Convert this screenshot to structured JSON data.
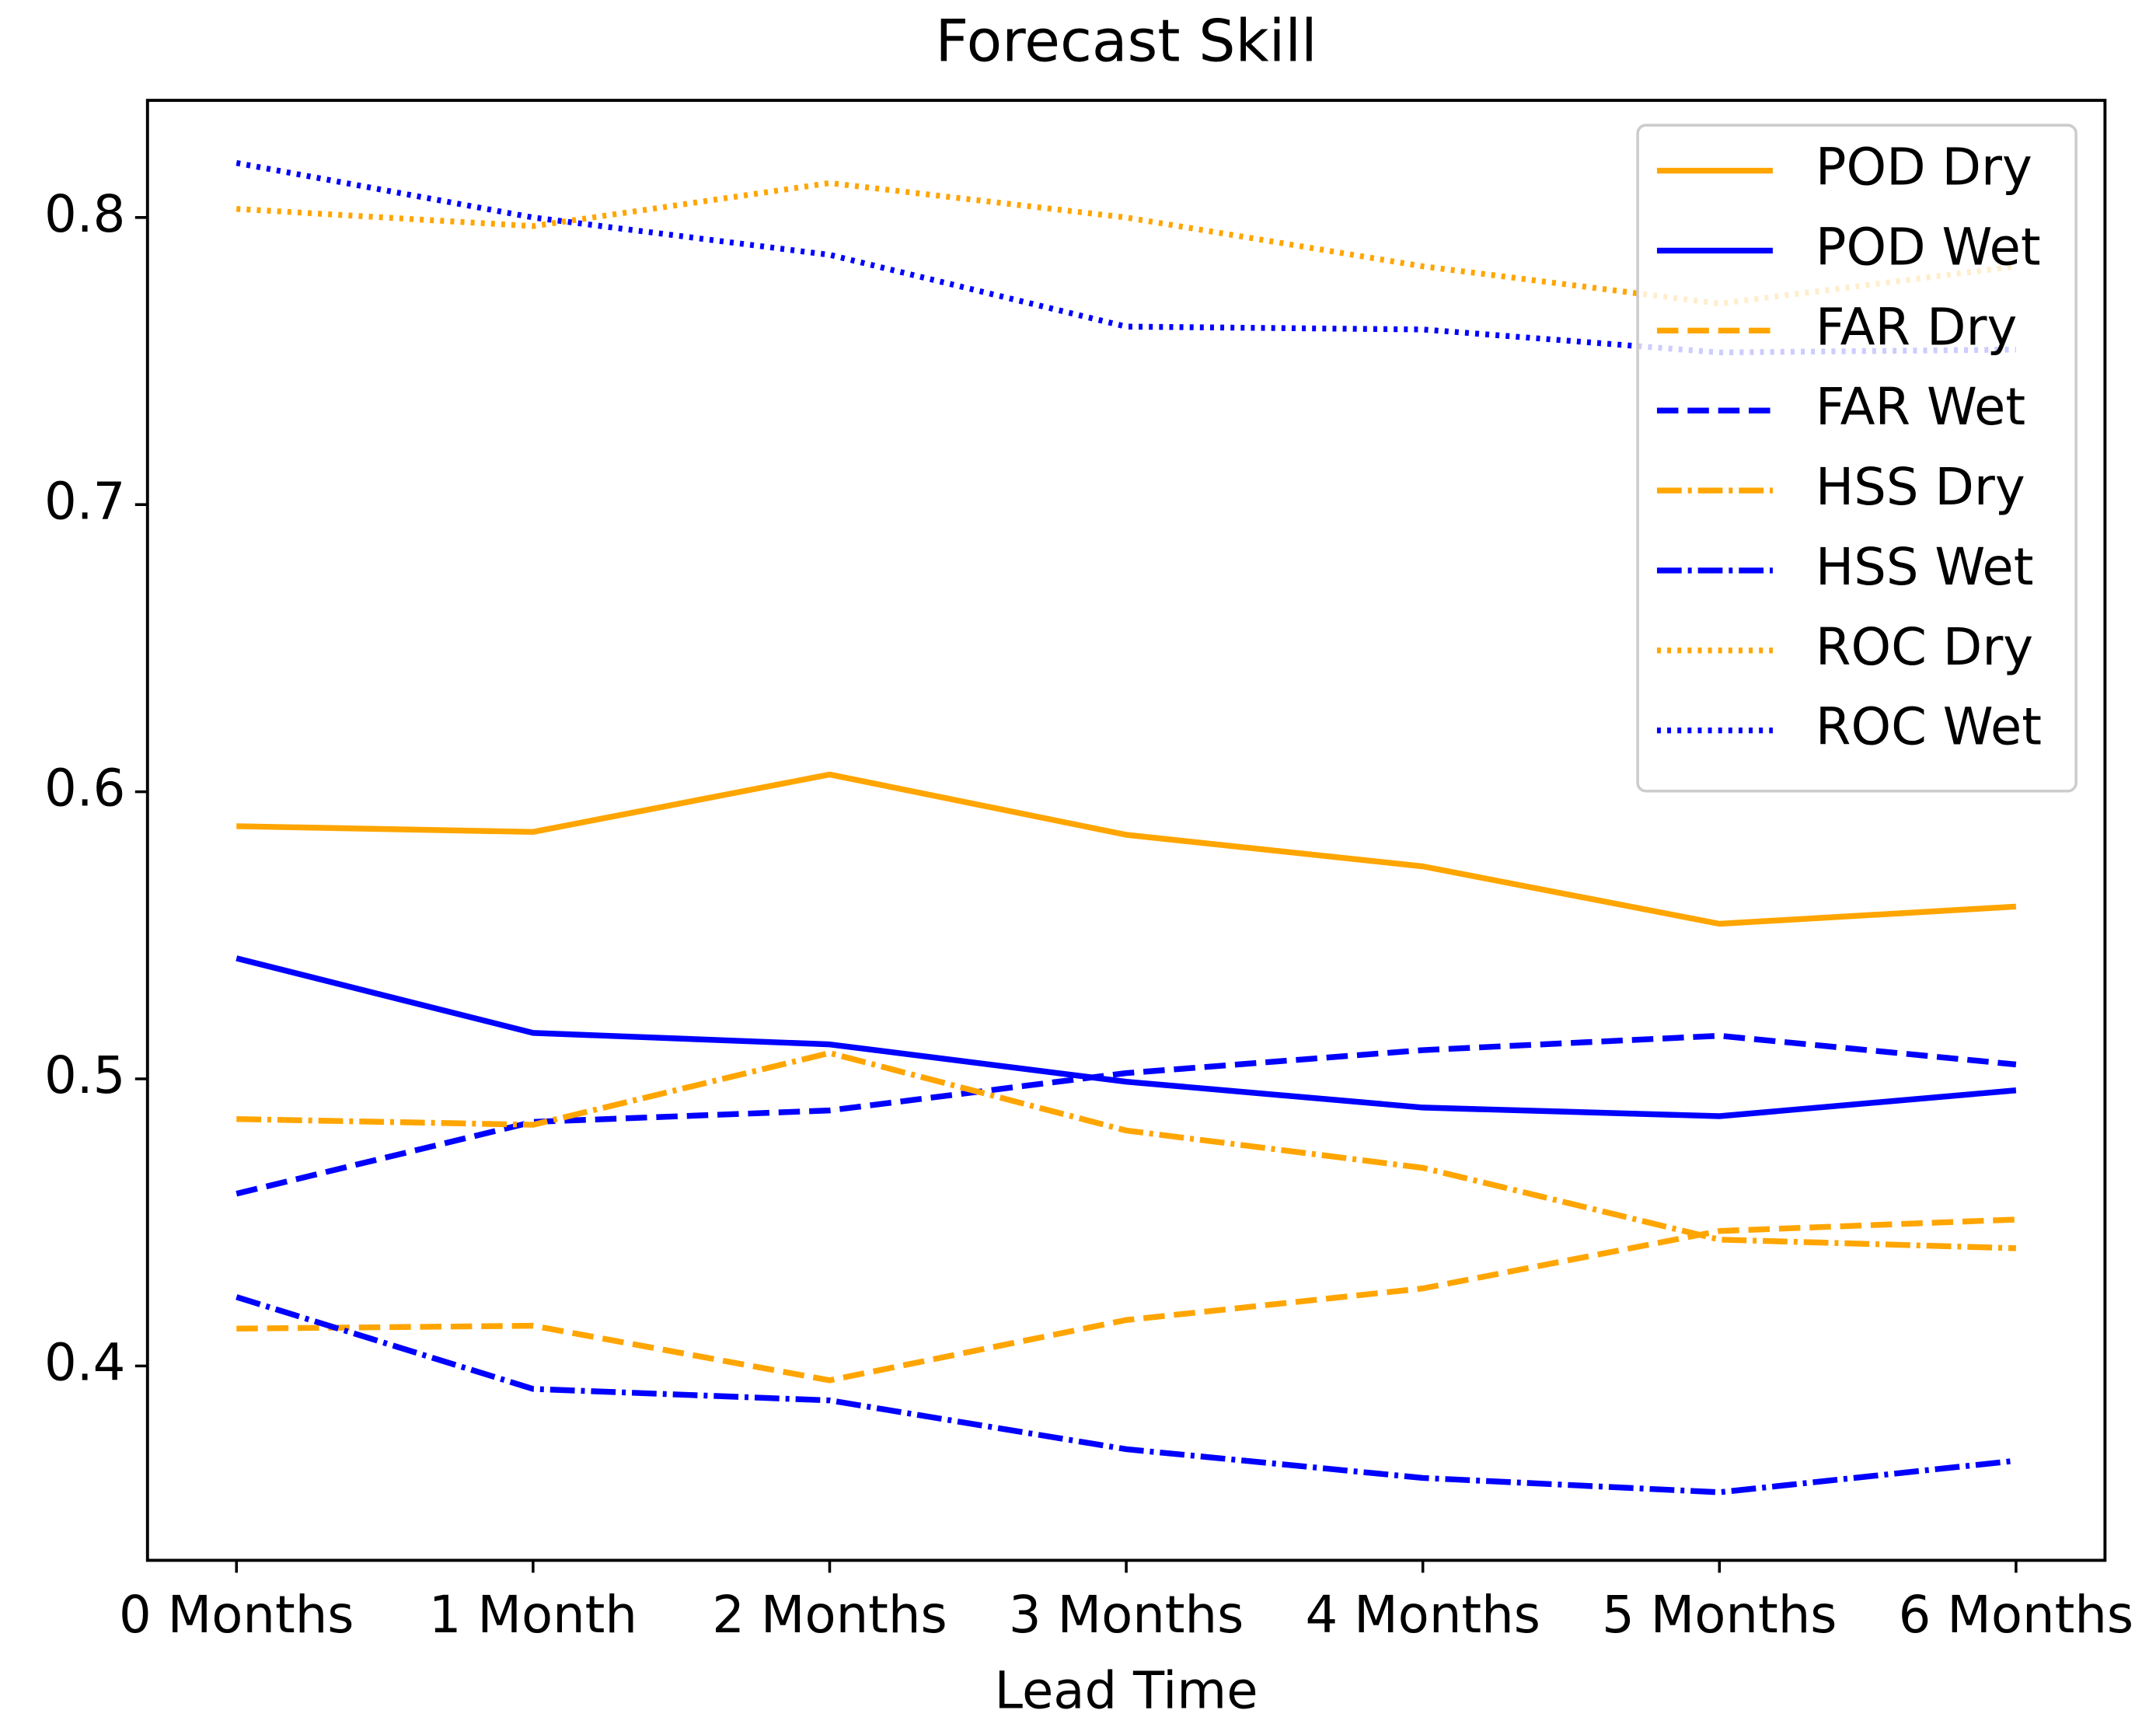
{
  "chart_data": {
    "type": "line",
    "title": "Forecast Skill",
    "x_label": "Lead Time",
    "categories": [
      "0 Months",
      "1 Month",
      "2 Months",
      "3 Months",
      "4 Months",
      "5 Months",
      "6 Months"
    ],
    "ylim": [
      0.3323,
      0.8408
    ],
    "yticks": [
      0.4,
      0.5,
      0.6,
      0.7,
      0.8
    ],
    "legend": "upper right",
    "grid": false,
    "series": [
      {
        "name": "POD Dry",
        "color": "#ffa500",
        "linestyle": "solid",
        "values": [
          0.588,
          0.586,
          0.606,
          0.585,
          0.574,
          0.554,
          0.56
        ]
      },
      {
        "name": "POD Wet",
        "color": "#0000ff",
        "linestyle": "solid",
        "values": [
          0.542,
          0.516,
          0.512,
          0.499,
          0.49,
          0.487,
          0.496
        ]
      },
      {
        "name": "FAR Dry",
        "color": "#ffa500",
        "linestyle": "dashed",
        "values": [
          0.413,
          0.414,
          0.395,
          0.416,
          0.427,
          0.447,
          0.451
        ]
      },
      {
        "name": "FAR Wet",
        "color": "#0000ff",
        "linestyle": "dashed",
        "values": [
          0.46,
          0.485,
          0.489,
          0.502,
          0.51,
          0.515,
          0.505
        ]
      },
      {
        "name": "HSS Dry",
        "color": "#ffa500",
        "linestyle": "dashdot",
        "values": [
          0.486,
          0.484,
          0.509,
          0.482,
          0.469,
          0.444,
          0.441
        ]
      },
      {
        "name": "HSS Wet",
        "color": "#0000ff",
        "linestyle": "dashdot",
        "values": [
          0.424,
          0.392,
          0.388,
          0.371,
          0.361,
          0.356,
          0.367
        ]
      },
      {
        "name": "ROC Dry",
        "color": "#ffa500",
        "linestyle": "dotted",
        "values": [
          0.803,
          0.797,
          0.812,
          0.8,
          0.783,
          0.77,
          0.783
        ]
      },
      {
        "name": "ROC Wet",
        "color": "#0000ff",
        "linestyle": "dotted",
        "values": [
          0.819,
          0.8,
          0.787,
          0.762,
          0.761,
          0.753,
          0.754
        ]
      }
    ]
  }
}
